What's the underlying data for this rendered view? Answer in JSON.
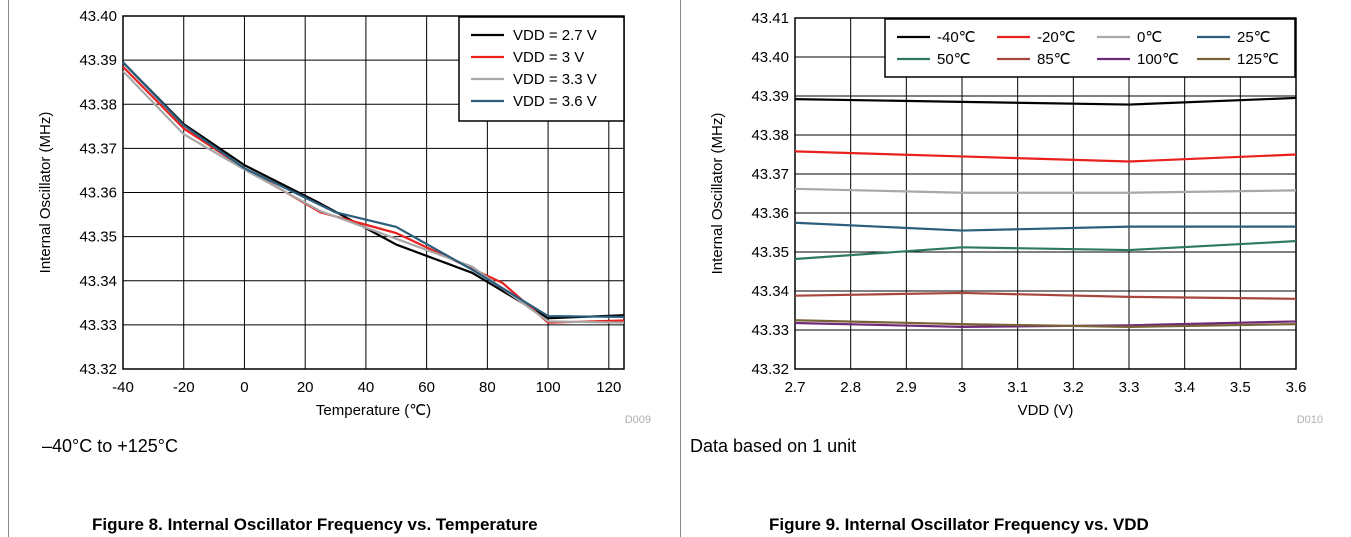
{
  "figures": [
    {
      "note": "–40°C to +125°C",
      "caption": "Figure 8. Internal Oscillator Frequency vs. Temperature",
      "code": "D009"
    },
    {
      "note": "Data based on 1 unit",
      "caption": "Figure 9. Internal Oscillator Frequency vs. VDD",
      "code": "D010"
    }
  ],
  "chart_data": [
    {
      "type": "line",
      "xlabel": "Temperature (℃)",
      "ylabel": "Internal Oscillator (MHz)",
      "xlim": [
        -40,
        125
      ],
      "ylim": [
        43.32,
        43.4
      ],
      "xticks": [
        -40,
        -20,
        0,
        20,
        40,
        60,
        80,
        100,
        120
      ],
      "yticks": [
        43.32,
        43.33,
        43.34,
        43.35,
        43.36,
        43.37,
        43.38,
        43.39,
        43.4
      ],
      "grid": true,
      "legend_position": "top-right",
      "series": [
        {
          "name": "VDD = 2.7 V",
          "color": "#000000",
          "x": [
            -40,
            -20,
            0,
            25,
            50,
            75,
            100,
            125
          ],
          "values": [
            43.3895,
            43.3755,
            43.3662,
            43.3575,
            43.3482,
            43.3418,
            43.3315,
            43.3322
          ]
        },
        {
          "name": "VDD = 3 V",
          "color": "#e8201e",
          "x": [
            -40,
            -20,
            0,
            25,
            50,
            85,
            100,
            125
          ],
          "values": [
            43.3885,
            43.3745,
            43.3655,
            43.3555,
            43.3508,
            43.3395,
            43.3305,
            43.331
          ]
        },
        {
          "name": "VDD = 3.3 V",
          "color": "#a8a8a8",
          "x": [
            -40,
            -20,
            0,
            25,
            50,
            75,
            100,
            125
          ],
          "values": [
            43.3875,
            43.3732,
            43.3652,
            43.3558,
            43.3495,
            43.3432,
            43.3308,
            43.3305
          ]
        },
        {
          "name": "VDD = 3.6 V",
          "color": "#2b5d7c",
          "x": [
            -40,
            -20,
            0,
            30,
            50,
            75,
            100,
            125
          ],
          "values": [
            43.3895,
            43.3752,
            43.3655,
            43.3555,
            43.3522,
            43.3425,
            43.332,
            43.3318
          ]
        }
      ]
    },
    {
      "type": "line",
      "xlabel": "VDD (V)",
      "ylabel": "Internal Oscillator (MHz)",
      "xlim": [
        2.7,
        3.6
      ],
      "ylim": [
        43.32,
        43.41
      ],
      "xticks": [
        2.7,
        2.8,
        2.9,
        3,
        3.1,
        3.2,
        3.3,
        3.4,
        3.5,
        3.6
      ],
      "yticks": [
        43.32,
        43.33,
        43.34,
        43.35,
        43.36,
        43.37,
        43.38,
        43.39,
        43.4,
        43.41
      ],
      "grid": true,
      "legend_position": "top-right",
      "x": [
        2.7,
        3.0,
        3.3,
        3.6
      ],
      "series": [
        {
          "name": "-40℃",
          "color": "#000000",
          "values": [
            43.3892,
            43.3885,
            43.3878,
            43.3895
          ]
        },
        {
          "name": "-20℃",
          "color": "#e8201e",
          "values": [
            43.3758,
            43.3745,
            43.3732,
            43.375
          ]
        },
        {
          "name": "0℃",
          "color": "#a8a8a8",
          "values": [
            43.3662,
            43.3652,
            43.3652,
            43.3658
          ]
        },
        {
          "name": "25℃",
          "color": "#2b5d7c",
          "values": [
            43.3575,
            43.3555,
            43.3565,
            43.3565
          ]
        },
        {
          "name": "50℃",
          "color": "#2e7a5a",
          "values": [
            43.3482,
            43.3512,
            43.3505,
            43.3528
          ]
        },
        {
          "name": "85℃",
          "color": "#a8463e",
          "values": [
            43.3388,
            43.3395,
            43.3385,
            43.338
          ]
        },
        {
          "name": "100℃",
          "color": "#6e2a78",
          "values": [
            43.3318,
            43.3308,
            43.3312,
            43.3322
          ]
        },
        {
          "name": "125℃",
          "color": "#7a6238",
          "values": [
            43.3325,
            43.3315,
            43.3308,
            43.3315
          ]
        }
      ]
    }
  ]
}
